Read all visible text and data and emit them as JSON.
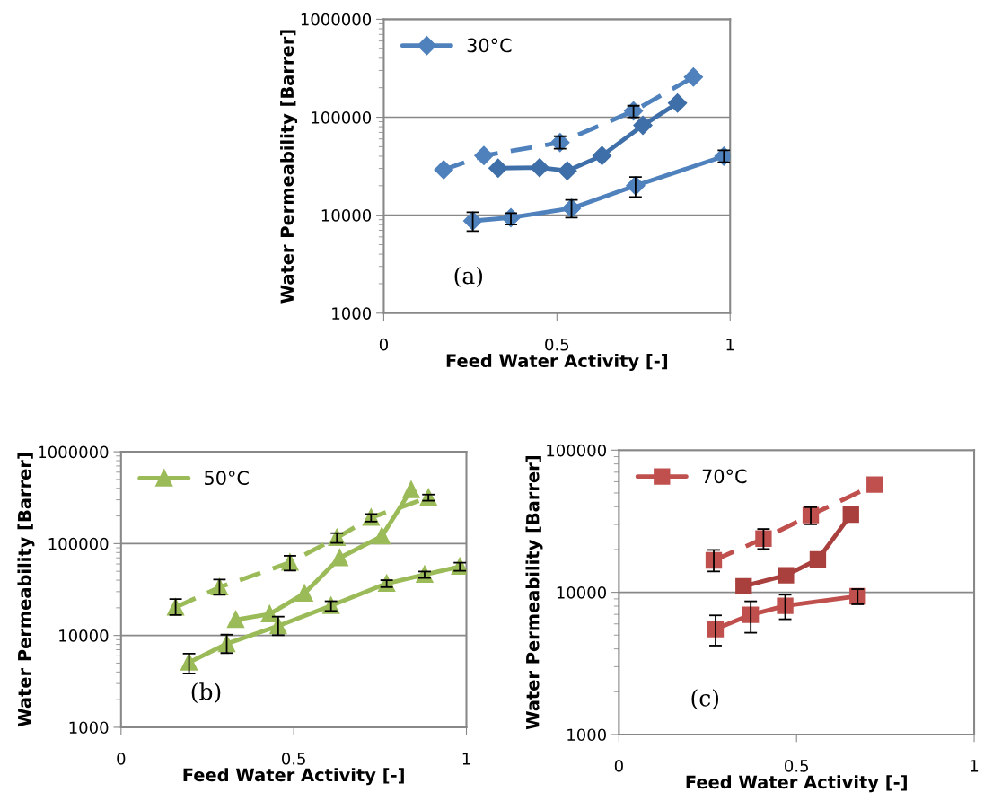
{
  "chart_data": [
    {
      "type": "line",
      "xlabel": "Feed Water Activity [-]",
      "ylabel": "Water Permeability [Barrer]",
      "log": "y",
      "xlim": [
        0,
        1
      ],
      "xticks": [
        0,
        0.5,
        1
      ],
      "ylim": [
        1000,
        1000000
      ],
      "yticks": [
        1000,
        10000,
        100000,
        1000000
      ],
      "grid": "y",
      "legend": "top left",
      "annotations": [
        "(a)"
      ],
      "series": [
        {
          "name": "30°C",
          "color": "#4f81bd",
          "marker": "diamond",
          "line_style": "solid",
          "x": [
            0.257,
            0.367,
            0.542,
            0.727,
            0.982
          ],
          "values": [
            8750,
            9430,
            11760,
            19990,
            39970
          ],
          "errors": [
            [
              6870,
              10700
            ],
            [
              8020,
              10500
            ],
            [
              9430,
              14350
            ],
            [
              15330,
              24560
            ],
            [
              34700,
              46000
            ]
          ]
        },
        {
          "color": "#4f81bd",
          "marker": "diamond",
          "line_style": "dashed",
          "x": [
            0.173,
            0.289,
            0.509,
            0.721,
            0.894
          ],
          "values": [
            29100,
            40500,
            55200,
            115800,
            256700
          ],
          "errors": [
            null,
            null,
            [
              47600,
              63900
            ],
            [
              100000,
              131000
            ],
            null
          ]
        },
        {
          "color": "#3f6fa8",
          "marker": "diamond",
          "line_style": "solid",
          "x": [
            0.33,
            0.45,
            0.53,
            0.63,
            0.748,
            0.848
          ],
          "values": [
            30200,
            30600,
            28400,
            40500,
            82600,
            139300
          ]
        }
      ]
    },
    {
      "type": "line",
      "xlabel": "Feed Water Activity [-]",
      "ylabel": "Water Permeability [Barrer]",
      "log": "y",
      "xlim": [
        0,
        1
      ],
      "xticks": [
        0,
        0.5,
        1
      ],
      "ylim": [
        1000,
        1000000
      ],
      "yticks": [
        1000,
        10000,
        100000,
        1000000
      ],
      "grid": "y",
      "legend": "top left",
      "annotations": [
        "(b)"
      ],
      "series": [
        {
          "name": "50°C",
          "color": "#9bbb59",
          "marker": "triangle",
          "line_style": "solid",
          "x": [
            0.197,
            0.306,
            0.455,
            0.608,
            0.769,
            0.879,
            0.981
          ],
          "values": [
            5090,
            8110,
            12720,
            21050,
            36800,
            46000,
            56300
          ],
          "errors": [
            [
              3850,
              6330
            ],
            [
              6430,
              10200
            ],
            [
              10080,
              16040
            ],
            [
              18500,
              23600
            ],
            [
              33600,
              40000
            ],
            [
              42300,
              49700
            ],
            [
              50600,
              62000
            ]
          ]
        },
        {
          "color": "#9bbb59",
          "marker": "triangle",
          "line_style": "dashed",
          "x": [
            0.158,
            0.285,
            0.489,
            0.625,
            0.724,
            0.89
          ],
          "values": [
            20250,
            33500,
            62300,
            115900,
            191900,
            317600
          ],
          "errors": [
            [
              16700,
              24900
            ],
            [
              27800,
              40700
            ],
            [
              50900,
              73700
            ],
            [
              101800,
              130000
            ],
            [
              173800,
              210000
            ],
            [
              293200,
              342000
            ]
          ]
        },
        {
          "color": "#9bbb59",
          "marker": "triangle",
          "line_style": "solid",
          "x": [
            0.332,
            0.43,
            0.531,
            0.633,
            0.755,
            0.84
          ],
          "values": [
            14850,
            17070,
            28700,
            70000,
            120500,
            385000
          ]
        }
      ]
    },
    {
      "type": "line",
      "xlabel": "Feed Water Activity [-]",
      "ylabel": "Water Permeability [Barrer]",
      "log": "y",
      "xlim": [
        0,
        1
      ],
      "xticks": [
        0,
        0.5,
        1
      ],
      "ylim": [
        1000,
        100000
      ],
      "yticks": [
        1000,
        10000,
        100000
      ],
      "grid": "y",
      "legend": "top left",
      "annotations": [
        "(c)"
      ],
      "series": [
        {
          "name": "70°C",
          "color": "#c0504d",
          "marker": "square",
          "line_style": "solid",
          "x": [
            0.272,
            0.371,
            0.468,
            0.672
          ],
          "values": [
            5510,
            6955,
            8040,
            9390
          ],
          "errors": [
            [
              4220,
              6890
            ],
            [
              5200,
              8650
            ],
            [
              6470,
              9620
            ],
            [
              8240,
              10540
            ]
          ]
        },
        {
          "color": "#c0504d",
          "marker": "square",
          "line_style": "dashed",
          "x": [
            0.267,
            0.407,
            0.54,
            0.72
          ],
          "values": [
            16800,
            23900,
            34900,
            57300
          ],
          "errors": [
            [
              14030,
              19870
            ],
            [
              20180,
              27900
            ],
            [
              30100,
              39700
            ],
            null
          ]
        },
        {
          "color": "#a9403d",
          "marker": "square",
          "line_style": "solid",
          "x": [
            0.351,
            0.47,
            0.56,
            0.653
          ],
          "values": [
            11020,
            13180,
            17030,
            35200
          ]
        }
      ]
    }
  ]
}
